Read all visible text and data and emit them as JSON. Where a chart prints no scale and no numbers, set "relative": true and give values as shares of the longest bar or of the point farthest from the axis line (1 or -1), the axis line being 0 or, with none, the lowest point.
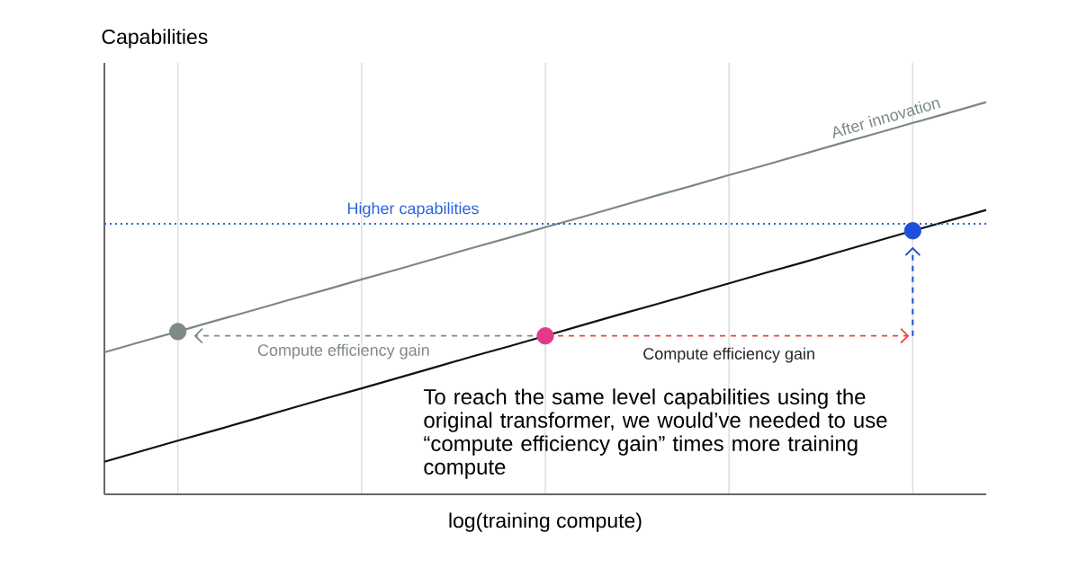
{
  "chart_data": {
    "type": "line",
    "ylabel": "Capabilities",
    "xlabel": "log(training compute)",
    "relative": true,
    "grid": "x",
    "categories": [
      null,
      null,
      null,
      null,
      null,
      null,
      null,
      null,
      null,
      null,
      null,
      null,
      null,
      null,
      null,
      null,
      null,
      null,
      null,
      null,
      null,
      null,
      null,
      null,
      null
    ],
    "series": [
      {
        "name": "After innovation",
        "color": "#7b8985",
        "values": [
          0.362,
          0.389,
          0.415,
          0.442,
          0.468,
          0.495,
          0.521,
          0.548,
          0.574,
          0.601,
          0.628,
          0.654,
          0.681,
          0.707,
          0.734,
          0.761,
          0.787,
          0.814,
          0.84,
          0.867,
          0.894,
          0.92,
          0.947,
          0.973,
          1.0
        ],
        "colors": [
          null,
          null,
          "#7d8a88",
          null,
          null,
          null,
          null,
          null,
          null,
          null,
          null,
          null,
          null,
          null,
          null,
          null,
          null,
          null,
          null,
          null,
          null,
          null,
          null,
          null,
          null
        ]
      },
      {
        "color": "#111111",
        "values": [
          0.083,
          0.11,
          0.137,
          0.163,
          0.19,
          0.217,
          0.244,
          0.27,
          0.297,
          0.324,
          0.351,
          0.377,
          0.404,
          0.431,
          0.458,
          0.484,
          0.511,
          0.538,
          0.565,
          0.591,
          0.618,
          0.645,
          0.672,
          0.698,
          0.725
        ],
        "colors": [
          null,
          null,
          null,
          null,
          null,
          null,
          null,
          null,
          null,
          null,
          null,
          null,
          "#e2398a",
          null,
          null,
          null,
          null,
          null,
          null,
          null,
          null,
          null,
          "#1d4fd8",
          null,
          null
        ]
      }
    ],
    "ref_lines": [
      {
        "axis": "y",
        "value": 0.69,
        "label": "Higher capabilities",
        "color": "#2a62e0",
        "line_style": "dotted"
      }
    ],
    "annotations": [
      "Compute efficiency gain",
      "Compute efficiency gain",
      "To reach the same level capabilities using the original transformer, we would’ve needed to use “compute efficiency gain” times more training compute"
    ]
  }
}
